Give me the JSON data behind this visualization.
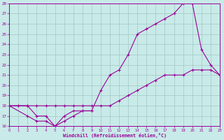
{
  "xlabel": "Windchill (Refroidissement éolien,°C)",
  "bg_color": "#c8eae8",
  "line_color": "#990099",
  "grid_color": "#a0c8c4",
  "xlim": [
    0,
    23
  ],
  "ylim": [
    16,
    28
  ],
  "xticks": [
    0,
    1,
    2,
    3,
    4,
    5,
    6,
    7,
    8,
    9,
    10,
    11,
    12,
    13,
    14,
    15,
    16,
    17,
    18,
    19,
    20,
    21,
    22,
    23
  ],
  "yticks": [
    16,
    17,
    18,
    19,
    20,
    21,
    22,
    23,
    24,
    25,
    26,
    27,
    28
  ],
  "line1_x": [
    0,
    1,
    2,
    3,
    4,
    5,
    6,
    7,
    8,
    9
  ],
  "line1_y": [
    18,
    18,
    18,
    17,
    17,
    16,
    16.5,
    17,
    17.5,
    17.5
  ],
  "line2_x": [
    0,
    2,
    3,
    4,
    5,
    6,
    7,
    8,
    9,
    10,
    11,
    12,
    13,
    14,
    15,
    16,
    17,
    18,
    19,
    20,
    21,
    22,
    23
  ],
  "line2_y": [
    18,
    17,
    16.5,
    16.5,
    16,
    17,
    17.5,
    17.5,
    17.5,
    19.5,
    21,
    21.5,
    23,
    25,
    25.5,
    26,
    26.5,
    27,
    28,
    28,
    23.5,
    22,
    21
  ],
  "line3_x": [
    0,
    1,
    2,
    3,
    4,
    5,
    6,
    7,
    8,
    9,
    10,
    11,
    12,
    13,
    14,
    15,
    16,
    17,
    18,
    19,
    20,
    21,
    22,
    23
  ],
  "line3_y": [
    18,
    18,
    18,
    18,
    18,
    18,
    18,
    18,
    18,
    18,
    18,
    18,
    18.5,
    19,
    19.5,
    20,
    20.5,
    21,
    21,
    21,
    21.5,
    21.5,
    21.5,
    21
  ]
}
